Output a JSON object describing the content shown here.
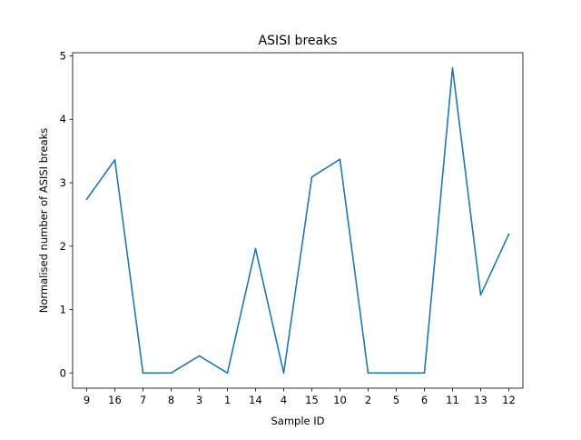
{
  "chart_data": {
    "type": "line",
    "title": "ASISI breaks",
    "xlabel": "Sample ID",
    "ylabel": "Normalised number of ASISI breaks",
    "categories": [
      "9",
      "16",
      "7",
      "8",
      "3",
      "1",
      "14",
      "4",
      "15",
      "10",
      "2",
      "5",
      "6",
      "11",
      "13",
      "12"
    ],
    "series": [
      {
        "values": [
          2.74,
          3.36,
          0.0,
          0.0,
          0.27,
          0.0,
          1.96,
          0.0,
          3.09,
          3.37,
          0.0,
          0.0,
          0.0,
          4.81,
          1.23,
          2.19
        ],
        "color": "#1f77b4"
      }
    ],
    "yticks": [
      "0",
      "1",
      "2",
      "3",
      "4",
      "5"
    ],
    "ylim": [
      -0.24,
      5.05
    ],
    "grid": false,
    "legend": "none"
  }
}
